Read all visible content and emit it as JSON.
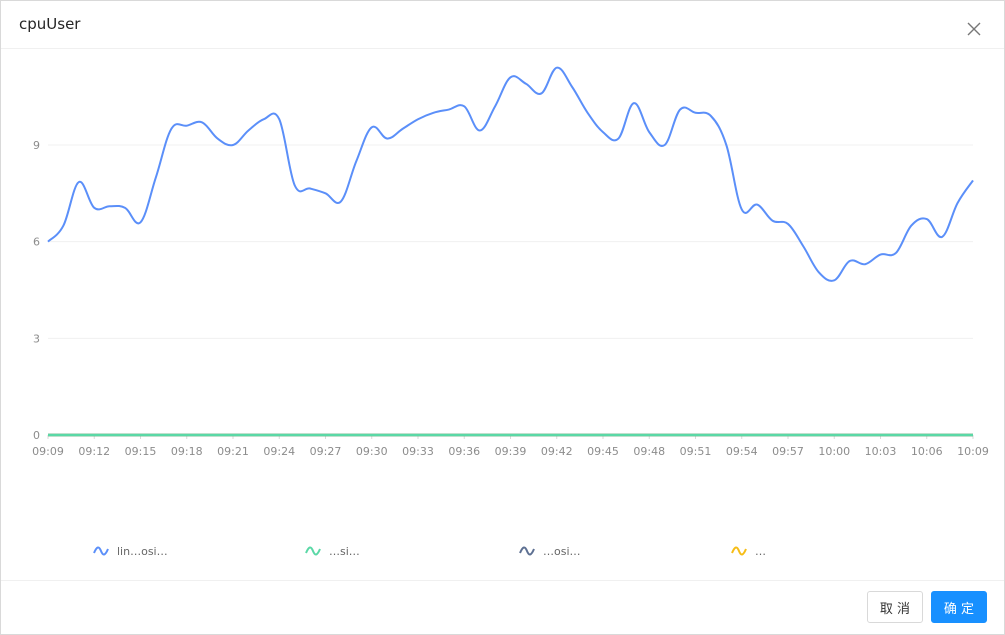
{
  "dialog": {
    "title": "cpuUser",
    "cancel_label": "取 消",
    "ok_label": "确 定"
  },
  "legend": [
    {
      "label": "lin…osi…",
      "color": "#5b8ff9"
    },
    {
      "label": "…si…",
      "color": "#5ad8a6"
    },
    {
      "label": "…osi…",
      "color": "#5d7092"
    },
    {
      "label": "…",
      "color": "#f6bd16"
    }
  ],
  "chart_data": {
    "type": "line",
    "title": "",
    "xlabel": "",
    "ylabel": "",
    "ylim": [
      0,
      12
    ],
    "yticks": [
      0,
      3,
      6,
      9
    ],
    "xticks": [
      "09:09",
      "09:12",
      "09:15",
      "09:18",
      "09:21",
      "09:24",
      "09:27",
      "09:30",
      "09:33",
      "09:36",
      "09:39",
      "09:42",
      "09:45",
      "09:48",
      "09:51",
      "09:54",
      "09:57",
      "10:00",
      "10:03",
      "10:06",
      "10:09"
    ],
    "grid": true,
    "x": [
      "09:09",
      "09:10",
      "09:11",
      "09:12",
      "09:13",
      "09:14",
      "09:15",
      "09:16",
      "09:17",
      "09:18",
      "09:19",
      "09:20",
      "09:21",
      "09:22",
      "09:23",
      "09:24",
      "09:25",
      "09:26",
      "09:27",
      "09:28",
      "09:29",
      "09:30",
      "09:31",
      "09:32",
      "09:33",
      "09:34",
      "09:35",
      "09:36",
      "09:37",
      "09:38",
      "09:39",
      "09:40",
      "09:41",
      "09:42",
      "09:43",
      "09:44",
      "09:45",
      "09:46",
      "09:47",
      "09:48",
      "09:49",
      "09:50",
      "09:51",
      "09:52",
      "09:53",
      "09:54",
      "09:55",
      "09:56",
      "09:57",
      "09:58",
      "09:59",
      "10:00",
      "10:01",
      "10:02",
      "10:03",
      "10:04",
      "10:05",
      "10:06",
      "10:07",
      "10:08",
      "10:09"
    ],
    "series": [
      {
        "name": "",
        "color": "#5b8ff9",
        "values": [
          6.0,
          6.5,
          7.85,
          7.05,
          7.1,
          7.05,
          6.6,
          8.0,
          9.5,
          9.6,
          9.7,
          9.2,
          9.0,
          9.45,
          9.8,
          9.8,
          7.75,
          7.65,
          7.5,
          7.25,
          8.5,
          9.55,
          9.2,
          9.5,
          9.8,
          10.0,
          10.1,
          10.2,
          9.45,
          10.2,
          11.1,
          10.9,
          10.6,
          11.4,
          10.8,
          10.0,
          9.4,
          9.2,
          10.3,
          9.4,
          9.0,
          10.1,
          10.0,
          9.9,
          9.0,
          7.0,
          7.15,
          6.65,
          6.55,
          5.85,
          5.05,
          4.8,
          5.4,
          5.3,
          5.6,
          5.65,
          6.5,
          6.7,
          6.15,
          7.2,
          7.9
        ]
      },
      {
        "name": "",
        "color": "#5ad8a6",
        "values": [
          0,
          0,
          0,
          0,
          0,
          0,
          0,
          0,
          0,
          0,
          0,
          0,
          0,
          0,
          0,
          0,
          0,
          0,
          0,
          0,
          0,
          0,
          0,
          0,
          0,
          0,
          0,
          0,
          0,
          0,
          0,
          0,
          0,
          0,
          0,
          0,
          0,
          0,
          0,
          0,
          0,
          0,
          0,
          0,
          0,
          0,
          0,
          0,
          0,
          0,
          0,
          0,
          0,
          0,
          0,
          0,
          0,
          0,
          0,
          0,
          0
        ]
      },
      {
        "name": "",
        "color": "#5d7092",
        "values": [
          0,
          0,
          0,
          0,
          0,
          0,
          0,
          0,
          0,
          0,
          0,
          0,
          0,
          0,
          0,
          0,
          0,
          0,
          0,
          0,
          0,
          0,
          0,
          0,
          0,
          0,
          0,
          0,
          0,
          0,
          0,
          0,
          0,
          0,
          0,
          0,
          0,
          0,
          0,
          0,
          0,
          0,
          0,
          0,
          0,
          0,
          0,
          0,
          0,
          0,
          0,
          0,
          0,
          0,
          0,
          0,
          0,
          0,
          0,
          0,
          0
        ]
      },
      {
        "name": "",
        "color": "#f6bd16",
        "values": [
          0,
          0,
          0,
          0,
          0,
          0,
          0,
          0,
          0,
          0,
          0,
          0,
          0,
          0,
          0,
          0,
          0,
          0,
          0,
          0,
          0,
          0,
          0,
          0,
          0,
          0,
          0,
          0,
          0,
          0,
          0,
          0,
          0,
          0,
          0,
          0,
          0,
          0,
          0,
          0,
          0,
          0,
          0,
          0,
          0,
          0,
          0,
          0,
          0,
          0,
          0,
          0,
          0,
          0,
          0,
          0,
          0,
          0,
          0,
          0,
          0
        ]
      }
    ]
  }
}
